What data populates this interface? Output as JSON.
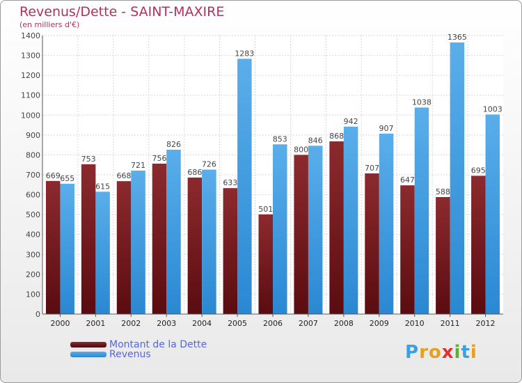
{
  "title": "Revenus/Dette - SAINT-MAXIRE",
  "subtitle": "(en milliers d'€)",
  "logo": {
    "letters": [
      "P",
      "r",
      "o",
      "x",
      "i",
      "t",
      "i"
    ],
    "colors": [
      "#3aa0e0",
      "#e6a020",
      "#e6a020",
      "#e03030",
      "#5cb030",
      "#3aa0e0",
      "#e6a020"
    ]
  },
  "colors": {
    "debt": "#7a1a1e",
    "revenue": "#3d9be2",
    "label": "#444444",
    "title": "#b03060",
    "legend_text": "#5566dd"
  },
  "chart_data": {
    "type": "bar",
    "categories": [
      "2000",
      "2001",
      "2002",
      "2003",
      "2004",
      "2005",
      "2006",
      "2007",
      "2008",
      "2009",
      "2010",
      "2011",
      "2012"
    ],
    "series": [
      {
        "name": "Montant de la Dette",
        "values": [
          669,
          753,
          668,
          756,
          686,
          633,
          501,
          800,
          868,
          707,
          647,
          588,
          695
        ]
      },
      {
        "name": "Revenus",
        "values": [
          655,
          615,
          721,
          826,
          726,
          1283,
          853,
          846,
          942,
          907,
          1038,
          1365,
          1003
        ]
      }
    ],
    "ylim": [
      0,
      1400
    ],
    "yticks": [
      0,
      100,
      200,
      300,
      400,
      500,
      600,
      700,
      800,
      900,
      1000,
      1100,
      1200,
      1300,
      1400
    ],
    "grid": true,
    "legend": "bottom-left"
  }
}
